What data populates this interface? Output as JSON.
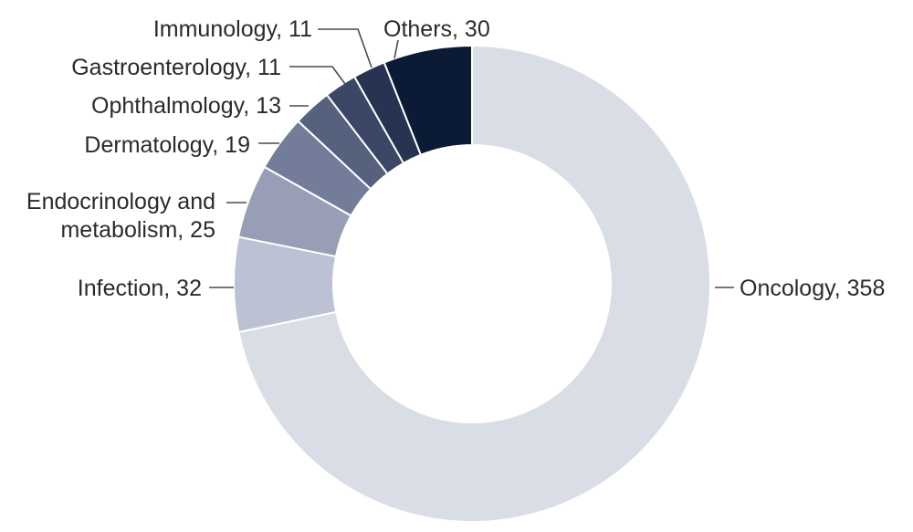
{
  "chart_data": {
    "type": "pie",
    "style": "donut",
    "slices": [
      {
        "name": "Oncology",
        "value": 358,
        "color": "#d9dde6",
        "label_lines": [
          "Oncology, 358"
        ]
      },
      {
        "name": "Infection",
        "value": 32,
        "color": "#bcc2d3",
        "label_lines": [
          "Infection, 32"
        ]
      },
      {
        "name": "Endocrinology and metabolism",
        "value": 25,
        "color": "#989eb5",
        "label_lines": [
          "Endocrinology and",
          "metabolism, 25"
        ]
      },
      {
        "name": "Dermatology",
        "value": 19,
        "color": "#737c98",
        "label_lines": [
          "Dermatology, 19"
        ]
      },
      {
        "name": "Ophthalmology",
        "value": 13,
        "color": "#56617e",
        "label_lines": [
          "Ophthalmology, 13"
        ]
      },
      {
        "name": "Gastroenterology",
        "value": 11,
        "color": "#3b4766",
        "label_lines": [
          "Gastroenterology, 11"
        ]
      },
      {
        "name": "Immunology",
        "value": 11,
        "color": "#263451",
        "label_lines": [
          "Immunology, 11"
        ]
      },
      {
        "name": "Others",
        "value": 30,
        "color": "#0b1a35",
        "label_lines": [
          "Others, 30"
        ]
      }
    ]
  }
}
